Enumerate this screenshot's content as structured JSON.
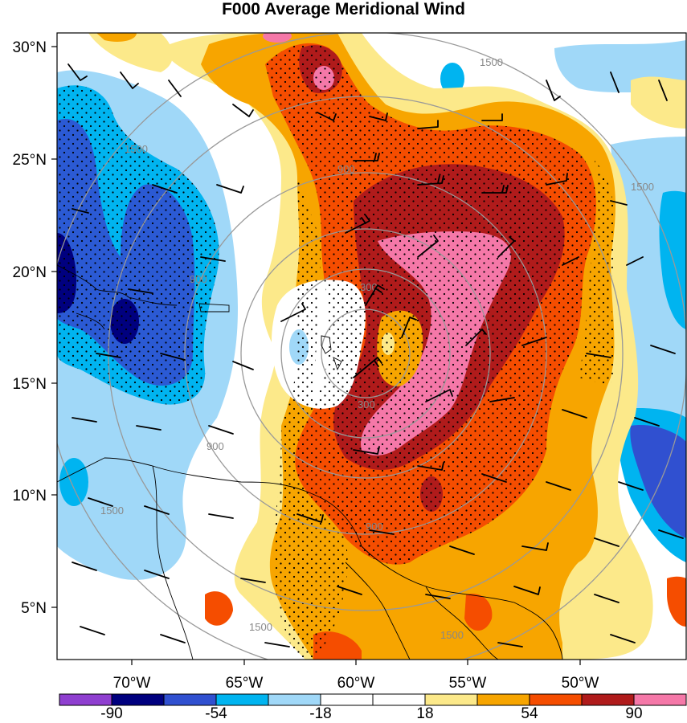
{
  "title": "F000 Average Meridional Wind",
  "lat_labels": [
    "30°N",
    "25°N",
    "20°N",
    "15°N",
    "10°N",
    "5°N"
  ],
  "lon_labels": [
    "70°W",
    "65°W",
    "60°W",
    "55°W",
    "50°W"
  ],
  "ring_labels": [
    "300",
    "300",
    "900",
    "900",
    "900",
    "900",
    "1500",
    "1500",
    "1500",
    "1500",
    "1500",
    "1500"
  ],
  "colorbar": {
    "colors": [
      "#8f3fd0",
      "#00007f",
      "#3050d0",
      "#00b4f0",
      "#a0d8f8",
      "#ffffff",
      "#ffffff",
      "#fce98a",
      "#f7a500",
      "#f54d00",
      "#b01b1b",
      "#f578a8"
    ],
    "labels": [
      "-90",
      "-54",
      "-18",
      "18",
      "54",
      "90"
    ]
  }
}
